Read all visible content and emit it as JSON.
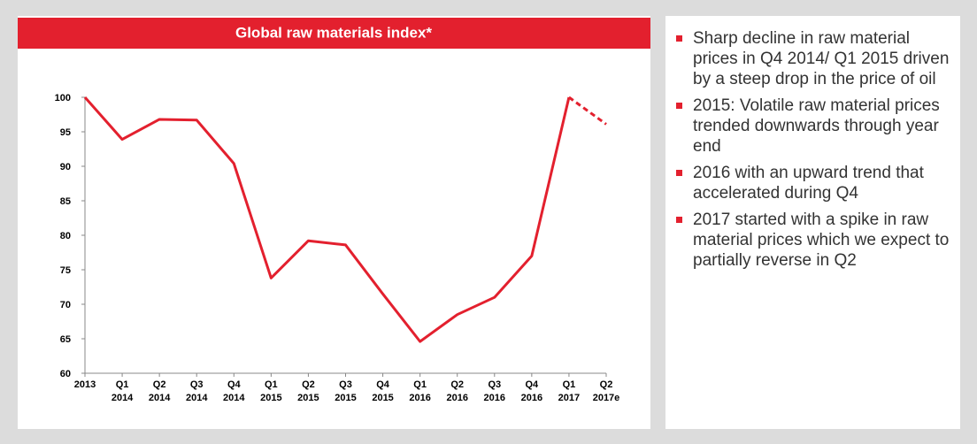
{
  "chart_data": {
    "type": "line",
    "title": "Global raw materials index*",
    "categories": [
      "2013",
      "Q1 2014",
      "Q2 2014",
      "Q3 2014",
      "Q4 2014",
      "Q1 2015",
      "Q2 2015",
      "Q3 2015",
      "Q4 2015",
      "Q1 2016",
      "Q2 2016",
      "Q3 2016",
      "Q4 2016",
      "Q1 2017",
      "Q2 2017e"
    ],
    "series": [
      {
        "color": "#e3202e",
        "dashed": false,
        "values": [
          100,
          93.9,
          96.8,
          96.7,
          90.4,
          73.8,
          79.2,
          78.6,
          71.5,
          64.6,
          68.5,
          71.0,
          77.0,
          100,
          null
        ]
      },
      {
        "color": "#e3202e",
        "dashed": true,
        "values": [
          null,
          null,
          null,
          null,
          null,
          null,
          null,
          null,
          null,
          null,
          null,
          null,
          null,
          100,
          96.1
        ]
      }
    ],
    "ylim": [
      60,
      100
    ],
    "yticks": [
      60,
      65,
      70,
      75,
      80,
      85,
      90,
      95,
      100
    ],
    "grid": false
  },
  "bullets": [
    "Sharp decline in raw material prices in Q4 2014/ Q1 2015 driven by a steep drop in the price of oil",
    "2015: Volatile raw material prices trended downwards through year end",
    "2016 with an upward trend that accelerated during Q4",
    "2017 started with a spike in raw material prices which we expect to partially reverse in Q2"
  ]
}
